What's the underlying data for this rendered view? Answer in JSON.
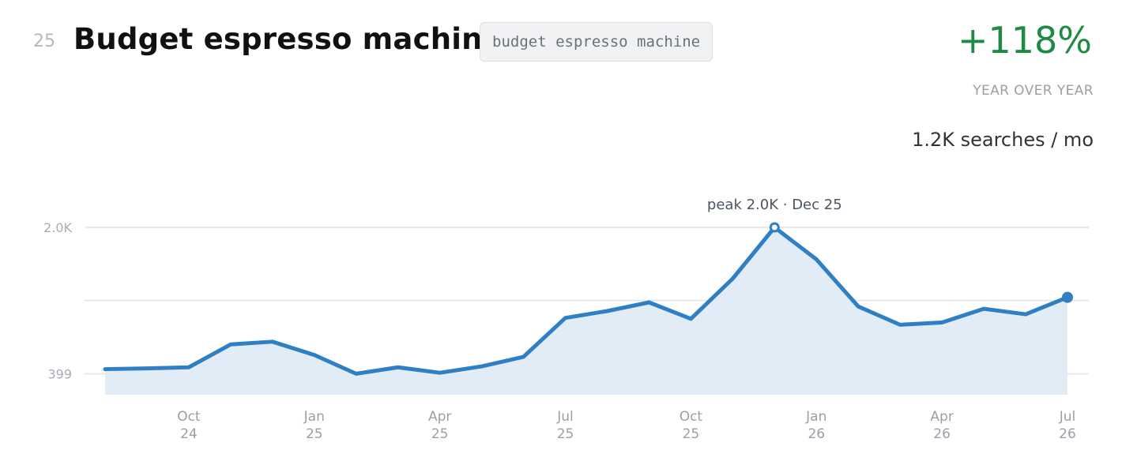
{
  "header": {
    "rank": "25",
    "title": "Budget espresso machines",
    "keyword_chip": "budget espresso machine",
    "growth": "+118%",
    "growth_label": "YEAR OVER YEAR",
    "volume": "1.2K searches / mo"
  },
  "colors": {
    "line": "#2f7fc5",
    "area": "#e1ecf7",
    "growth": "#1f8a45",
    "grid": "#e6e8eb"
  },
  "chart_data": {
    "type": "area",
    "y_tick_labels": [
      {
        "value": 2000,
        "label": "2.0K"
      },
      {
        "value": 399,
        "label": "399"
      }
    ],
    "ylim": [
      170,
      2000
    ],
    "grid_values": [
      2000,
      1200,
      399
    ],
    "x_ticks": [
      {
        "i": 2,
        "label": [
          "Oct",
          "24"
        ]
      },
      {
        "i": 5,
        "label": [
          "Jan",
          "25"
        ]
      },
      {
        "i": 8,
        "label": [
          "Apr",
          "25"
        ]
      },
      {
        "i": 11,
        "label": [
          "Jul",
          "25"
        ]
      },
      {
        "i": 14,
        "label": [
          "Oct",
          "25"
        ]
      },
      {
        "i": 17,
        "label": [
          "Jan",
          "26"
        ]
      },
      {
        "i": 20,
        "label": [
          "Apr",
          "26"
        ]
      },
      {
        "i": 23,
        "label": [
          "Jul",
          "26"
        ]
      }
    ],
    "series": [
      {
        "values": [
          450,
          458,
          470,
          720,
          750,
          605,
          400,
          470,
          410,
          480,
          585,
          1010,
          1085,
          1180,
          1000,
          1440,
          2000,
          1650,
          1135,
          935,
          960,
          1110,
          1050,
          1235
        ]
      }
    ],
    "peak": {
      "i": 16,
      "label": "peak 2.0K · Dec 25"
    },
    "last_point_marker": true
  }
}
